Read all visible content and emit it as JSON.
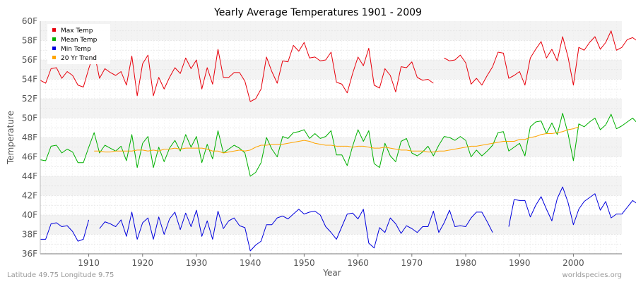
{
  "chart_data": {
    "type": "line",
    "title": "Yearly Average Temperatures 1901 - 2009",
    "xlabel": "Year",
    "ylabel": "Temperature",
    "xlim": [
      1901,
      2009
    ],
    "ylim": [
      36,
      60
    ],
    "x_ticks": [
      1910,
      1920,
      1930,
      1940,
      1950,
      1960,
      1970,
      1980,
      1990,
      2000
    ],
    "y_ticks": [
      "36F",
      "38F",
      "40F",
      "42F",
      "44F",
      "46F",
      "48F",
      "50F",
      "52F",
      "54F",
      "56F",
      "58F",
      "60F"
    ],
    "y_tick_values": [
      36,
      38,
      40,
      42,
      44,
      46,
      48,
      50,
      52,
      54,
      56,
      58,
      60
    ],
    "grid": true,
    "legend_position": "top-left",
    "series": [
      {
        "name": "Max Temp",
        "color": "#e8000b",
        "x_start": 1901,
        "values": [
          53.9,
          53.6,
          55.1,
          55.2,
          54.1,
          54.8,
          54.4,
          53.4,
          53.2,
          55.1,
          56.8,
          54.1,
          55.1,
          54.7,
          54.4,
          54.8,
          53.4,
          56.4,
          52.3,
          55.6,
          56.5,
          52.3,
          54.2,
          53.0,
          54.2,
          55.2,
          54.6,
          56.2,
          55.1,
          56.0,
          53.0,
          55.2,
          53.5,
          57.1,
          54.2,
          54.2,
          54.7,
          54.7,
          53.8,
          51.7,
          52.0,
          53.0,
          56.3,
          54.8,
          53.6,
          55.9,
          55.8,
          57.5,
          56.9,
          57.8,
          56.2,
          56.3,
          55.9,
          56.0,
          56.8,
          53.7,
          53.5,
          52.6,
          54.6,
          56.3,
          55.4,
          57.2,
          53.4,
          53.1,
          55.1,
          54.4,
          52.7,
          55.3,
          55.2,
          55.8,
          54.2,
          53.9,
          54.0,
          53.6,
          null,
          56.2,
          55.9,
          56.0,
          56.5,
          55.7,
          53.5,
          54.1,
          53.4,
          54.4,
          55.3,
          56.8,
          56.7,
          54.1,
          54.4,
          54.8,
          53.4,
          56.2,
          57.1,
          57.9,
          56.2,
          57.1,
          55.9,
          58.4,
          56.3,
          53.4,
          57.3,
          57.0,
          57.8,
          58.4,
          57.1,
          57.8,
          59.0,
          57.0,
          57.3,
          58.1,
          58.3,
          57.9,
          57.7
        ],
        "note": ""
      },
      {
        "name": "Mean Temp",
        "color": "#00b000",
        "x_start": 1901,
        "values": [
          45.7,
          45.6,
          47.1,
          47.2,
          46.4,
          46.8,
          46.5,
          45.4,
          45.4,
          47.0,
          48.5,
          46.4,
          47.2,
          46.9,
          46.6,
          47.1,
          45.6,
          48.3,
          44.9,
          47.4,
          48.1,
          44.9,
          47.0,
          45.5,
          46.9,
          47.7,
          46.6,
          48.3,
          47.0,
          48.1,
          45.4,
          47.3,
          45.8,
          48.7,
          46.4,
          46.8,
          47.2,
          46.9,
          46.4,
          44.0,
          44.4,
          45.4,
          48.0,
          46.8,
          46.0,
          48.1,
          47.9,
          48.5,
          48.6,
          48.8,
          47.9,
          48.4,
          47.9,
          48.1,
          48.7,
          46.2,
          46.2,
          45.1,
          47.1,
          48.8,
          47.6,
          48.7,
          45.3,
          44.9,
          47.4,
          46.1,
          45.5,
          47.6,
          47.9,
          46.4,
          46.1,
          46.5,
          47.1,
          46.1,
          47.2,
          48.1,
          48.0,
          47.7,
          48.1,
          47.7,
          46.0,
          46.7,
          46.1,
          46.6,
          47.2,
          48.5,
          48.6,
          46.6,
          47.0,
          47.4,
          46.1,
          49.1,
          49.6,
          49.7,
          48.4,
          49.5,
          48.3,
          50.5,
          48.4,
          45.6,
          49.4,
          49.1,
          49.6,
          50.0,
          48.8,
          49.3,
          50.4,
          48.9,
          49.2,
          49.6,
          50.0,
          49.4,
          49.3
        ],
        "note": ""
      },
      {
        "name": "Min Temp",
        "color": "#0000dd",
        "x_start": 1901,
        "values": [
          37.5,
          37.5,
          39.1,
          39.2,
          38.8,
          38.9,
          38.3,
          37.3,
          37.5,
          39.5,
          null,
          38.6,
          39.3,
          39.1,
          38.8,
          39.5,
          37.8,
          40.3,
          37.5,
          39.2,
          39.7,
          37.5,
          39.8,
          38.0,
          39.6,
          40.3,
          38.5,
          40.2,
          38.8,
          40.5,
          37.8,
          39.4,
          37.5,
          40.4,
          38.6,
          39.4,
          39.7,
          38.9,
          38.7,
          36.3,
          36.9,
          37.3,
          39.0,
          39.0,
          39.7,
          39.9,
          39.6,
          40.1,
          40.6,
          40.1,
          40.3,
          40.4,
          40.0,
          38.8,
          38.2,
          37.5,
          38.8,
          40.1,
          40.2,
          39.6,
          40.6,
          37.1,
          36.6,
          38.7,
          38.2,
          39.7,
          39.1,
          38.1,
          38.9,
          38.6,
          38.2,
          38.8,
          38.8,
          40.4,
          38.2,
          39.2,
          40.5,
          38.8,
          38.9,
          38.8,
          39.7,
          40.3,
          40.3,
          39.3,
          38.2,
          null,
          null,
          38.8,
          41.6,
          41.5,
          41.5,
          39.8,
          41.0,
          41.9,
          40.6,
          39.4,
          41.7,
          42.9,
          41.3,
          39.0,
          40.6,
          41.4,
          41.8,
          42.2,
          40.5,
          41.4,
          39.7,
          40.1,
          40.1,
          40.8,
          41.5,
          41.1,
          40.9
        ],
        "note": ""
      },
      {
        "name": "20 Yr Trend",
        "color": "#ffa500",
        "x_start": 1911,
        "values": [
          46.6,
          46.6,
          46.5,
          46.5,
          46.6,
          46.6,
          46.6,
          46.6,
          46.7,
          46.7,
          46.6,
          46.7,
          46.6,
          46.8,
          46.8,
          46.9,
          46.8,
          46.9,
          46.9,
          46.9,
          46.9,
          46.8,
          46.6,
          46.6,
          46.4,
          46.5,
          46.6,
          46.7,
          46.6,
          46.7,
          47.0,
          47.2,
          47.2,
          47.3,
          47.3,
          47.3,
          47.4,
          47.5,
          47.6,
          47.7,
          47.6,
          47.4,
          47.3,
          47.2,
          47.2,
          47.1,
          47.1,
          47.1,
          47.0,
          47.1,
          47.1,
          47.0,
          46.9,
          46.9,
          47.0,
          46.9,
          46.8,
          46.7,
          46.7,
          46.6,
          46.6,
          46.6,
          46.5,
          46.5,
          46.6,
          46.6,
          46.7,
          46.8,
          46.9,
          47.0,
          47.1,
          47.1,
          47.2,
          47.3,
          47.4,
          47.5,
          47.6,
          47.6,
          47.6,
          47.8,
          47.8,
          48.0,
          48.1,
          48.3,
          48.4,
          48.4,
          48.5,
          48.6,
          48.8,
          48.9,
          49.1
        ],
        "note": ""
      }
    ]
  },
  "footer": {
    "left": "Latitude 49.75 Longitude 9.75",
    "right": "worldspecies.org"
  }
}
